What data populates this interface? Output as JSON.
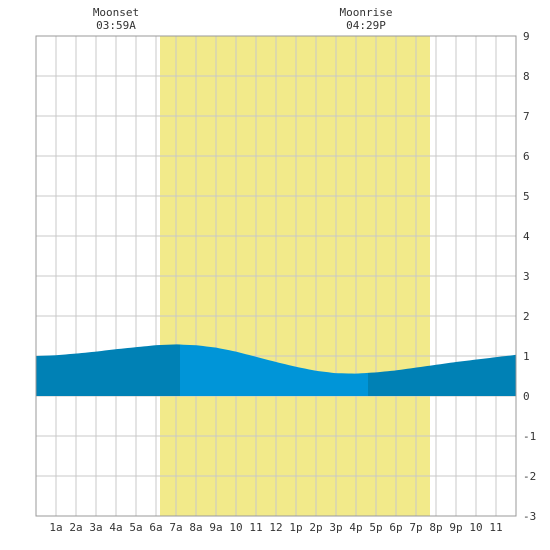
{
  "chart_data": {
    "type": "area",
    "title": "",
    "xlabel": "",
    "ylabel": "",
    "x_ticks": [
      "1a",
      "2a",
      "3a",
      "4a",
      "5a",
      "6a",
      "7a",
      "8a",
      "9a",
      "10",
      "11",
      "12",
      "1p",
      "2p",
      "3p",
      "4p",
      "5p",
      "6p",
      "7p",
      "8p",
      "9p",
      "10",
      "11"
    ],
    "y_ticks": [
      "9",
      "8",
      "7",
      "6",
      "5",
      "4",
      "3",
      "2",
      "1",
      "0",
      "-1",
      "-2",
      "-3"
    ],
    "xlim": [
      0,
      24
    ],
    "ylim": [
      -3,
      9
    ],
    "daylight": {
      "start_hour": 6.2,
      "end_hour": 19.7,
      "color": "#f2ea8a"
    },
    "tide_series": {
      "hours": [
        0,
        1,
        2,
        3,
        4,
        5,
        6,
        7,
        8,
        9,
        10,
        11,
        12,
        13,
        14,
        15,
        16,
        17,
        18,
        19,
        20,
        21,
        22,
        23,
        24
      ],
      "heights_ft": [
        1.0,
        1.02,
        1.06,
        1.11,
        1.17,
        1.22,
        1.27,
        1.29,
        1.27,
        1.21,
        1.11,
        0.98,
        0.85,
        0.73,
        0.63,
        0.57,
        0.56,
        0.59,
        0.64,
        0.71,
        0.78,
        0.85,
        0.91,
        0.97,
        1.03
      ],
      "night_color": "#0081b5",
      "day_color": "#0095d8",
      "highlight_start_hour": 7.2,
      "highlight_end_hour": 16.6
    },
    "moon_events": [
      {
        "label": "Moonset",
        "time": "03:59A",
        "hour": 4.0
      },
      {
        "label": "Moonrise",
        "time": "04:29P",
        "hour": 16.5
      }
    ],
    "grid": true,
    "grid_color": "#c8c8c8"
  }
}
